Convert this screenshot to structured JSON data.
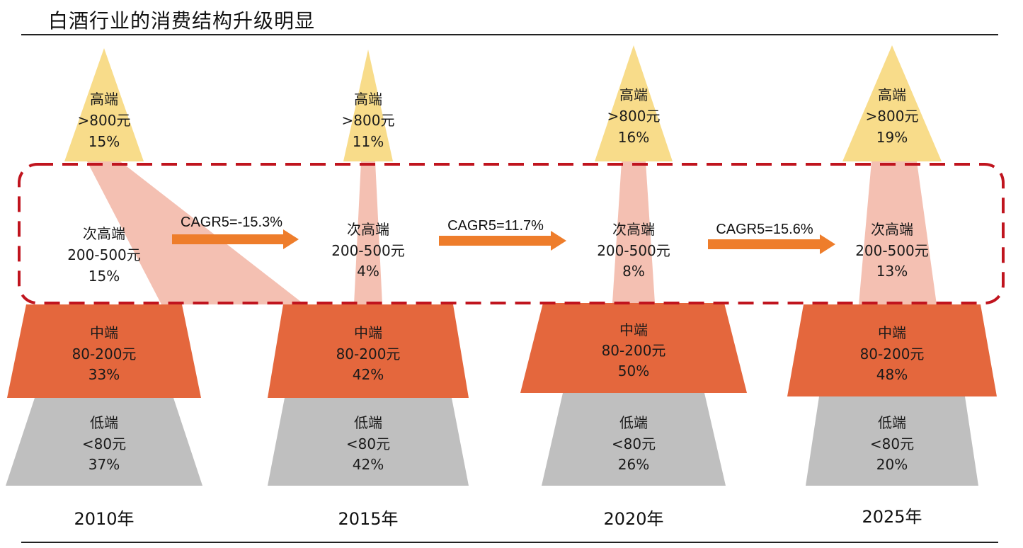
{
  "title": "白酒行业的消费结构升级明显",
  "colors": {
    "high": "#F8DC8A",
    "subhigh": "#F4C0B2",
    "mid": "#E4673D",
    "low": "#BFBFBF",
    "arrow": "#EE7D2B",
    "highlight_box": "#C0141E"
  },
  "columns": [
    {
      "year": "2010年",
      "tiers": [
        {
          "name": "高端",
          "price": ">800元",
          "pct": "15%"
        },
        {
          "name": "次高端",
          "price": "200-500元",
          "pct": "15%"
        },
        {
          "name": "中端",
          "price": "80-200元",
          "pct": "33%"
        },
        {
          "name": "低端",
          "price": "<80元",
          "pct": "37%"
        }
      ]
    },
    {
      "year": "2015年",
      "tiers": [
        {
          "name": "高端",
          "price": ">800元",
          "pct": "11%"
        },
        {
          "name": "次高端",
          "price": "200-500元",
          "pct": "4%"
        },
        {
          "name": "中端",
          "price": "80-200元",
          "pct": "42%"
        },
        {
          "name": "低端",
          "price": "<80元",
          "pct": "42%"
        }
      ]
    },
    {
      "year": "2020年",
      "tiers": [
        {
          "name": "高端",
          "price": ">800元",
          "pct": "16%"
        },
        {
          "name": "次高端",
          "price": "200-500元",
          "pct": "8%"
        },
        {
          "name": "中端",
          "price": "80-200元",
          "pct": "50%"
        },
        {
          "name": "低端",
          "price": "<80元",
          "pct": "26%"
        }
      ]
    },
    {
      "year": "2025年",
      "tiers": [
        {
          "name": "高端",
          "price": ">800元",
          "pct": "19%"
        },
        {
          "name": "次高端",
          "price": "200-500元",
          "pct": "13%"
        },
        {
          "name": "中端",
          "price": "80-200元",
          "pct": "48%"
        },
        {
          "name": "低端",
          "price": "<80元",
          "pct": "20%"
        }
      ]
    }
  ],
  "arrows": [
    {
      "label": "CAGR5=-15.3%"
    },
    {
      "label": "CAGR5=11.7%"
    },
    {
      "label": "CAGR5=15.6%"
    }
  ]
}
